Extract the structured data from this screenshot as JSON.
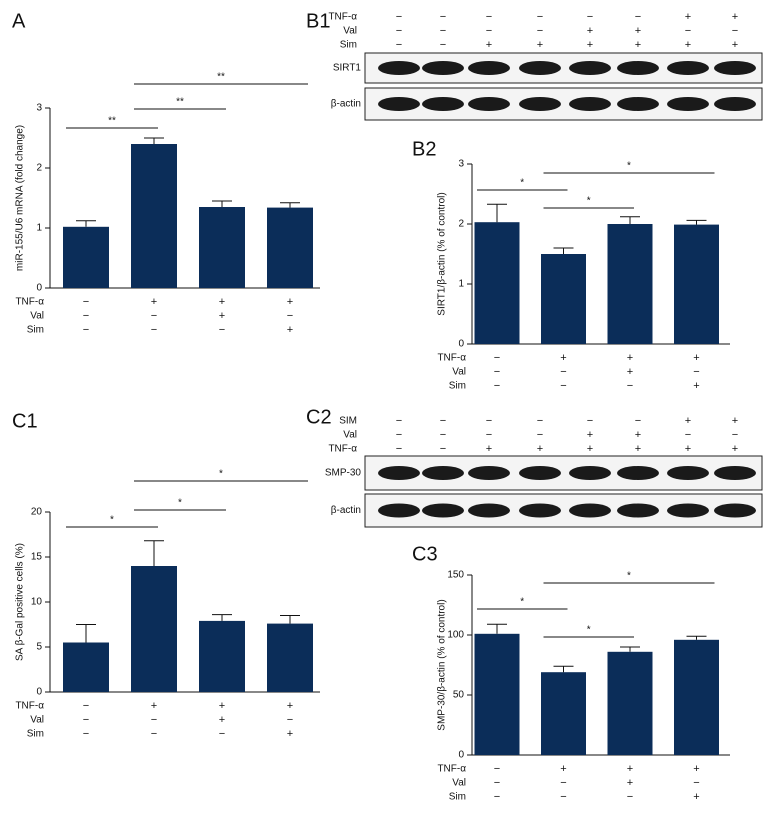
{
  "chart_data": [
    {
      "type": "bar",
      "panel": "A",
      "ylabel": "miR-155/U6 mRNA (fold change)",
      "values": [
        1.02,
        2.4,
        1.35,
        1.34
      ],
      "errors": [
        0.1,
        0.1,
        0.1,
        0.08
      ],
      "color": "#0b2d59",
      "ylim": [
        0,
        3
      ],
      "yticks": [
        0,
        1,
        2,
        3
      ],
      "conditions": [
        {
          "name": "TNF-α",
          "signs": [
            "−",
            "+",
            "+",
            "+"
          ]
        },
        {
          "name": "Val",
          "signs": [
            "−",
            "−",
            "+",
            "−"
          ]
        },
        {
          "name": "Sim",
          "signs": [
            "−",
            "−",
            "−",
            "+"
          ]
        }
      ],
      "significance": [
        {
          "groups": [
            0,
            1
          ],
          "label": "**"
        },
        {
          "groups": [
            1,
            2
          ],
          "label": "**"
        },
        {
          "groups": [
            1,
            3
          ],
          "label": "**"
        }
      ]
    },
    {
      "type": "bar",
      "panel": "B2",
      "ylabel": "SIRT1/β-actin (% of control)",
      "values": [
        2.03,
        1.5,
        2.0,
        1.99
      ],
      "errors": [
        0.3,
        0.1,
        0.12,
        0.07
      ],
      "color": "#0b2d59",
      "ylim": [
        0,
        3
      ],
      "yticks": [
        0,
        1,
        2,
        3
      ],
      "conditions": [
        {
          "name": "TNF-α",
          "signs": [
            "−",
            "+",
            "+",
            "+"
          ]
        },
        {
          "name": "Val",
          "signs": [
            "−",
            "−",
            "+",
            "−"
          ]
        },
        {
          "name": "Sim",
          "signs": [
            "−",
            "−",
            "−",
            "+"
          ]
        }
      ],
      "significance": [
        {
          "groups": [
            0,
            1
          ],
          "label": "*"
        },
        {
          "groups": [
            1,
            2
          ],
          "label": "*"
        },
        {
          "groups": [
            1,
            3
          ],
          "label": "*"
        }
      ]
    },
    {
      "type": "bar",
      "panel": "C1",
      "ylabel": "SA β-Gal positive cells (%)",
      "values": [
        5.5,
        14,
        7.9,
        7.6
      ],
      "errors": [
        2,
        2.8,
        0.7,
        0.9
      ],
      "color": "#0b2d59",
      "ylim": [
        0,
        20
      ],
      "yticks": [
        0,
        5,
        10,
        15,
        20
      ],
      "conditions": [
        {
          "name": "TNF-α",
          "signs": [
            "−",
            "+",
            "+",
            "+"
          ]
        },
        {
          "name": "Val",
          "signs": [
            "−",
            "−",
            "+",
            "−"
          ]
        },
        {
          "name": "Sim",
          "signs": [
            "−",
            "−",
            "−",
            "+"
          ]
        }
      ],
      "significance": [
        {
          "groups": [
            0,
            1
          ],
          "label": "*"
        },
        {
          "groups": [
            1,
            2
          ],
          "label": "*"
        },
        {
          "groups": [
            1,
            3
          ],
          "label": "*"
        }
      ]
    },
    {
      "type": "bar",
      "panel": "C3",
      "ylabel": "SMP-30/β-actin (% of control)",
      "values": [
        101,
        69,
        86,
        96
      ],
      "errors": [
        8,
        5,
        4,
        3
      ],
      "color": "#0b2d59",
      "ylim": [
        0,
        150
      ],
      "yticks": [
        0,
        50,
        100,
        150
      ],
      "conditions": [
        {
          "name": "TNF-α",
          "signs": [
            "−",
            "+",
            "+",
            "+"
          ]
        },
        {
          "name": "Val",
          "signs": [
            "−",
            "−",
            "+",
            "−"
          ]
        },
        {
          "name": "Sim",
          "signs": [
            "−",
            "−",
            "−",
            "+"
          ]
        }
      ],
      "significance": [
        {
          "groups": [
            0,
            1
          ],
          "label": "*"
        },
        {
          "groups": [
            1,
            2
          ],
          "label": "*"
        },
        {
          "groups": [
            1,
            3
          ],
          "label": "*"
        }
      ]
    }
  ],
  "blots": [
    {
      "panel": "B1",
      "conditions": [
        {
          "name": "TNF-α",
          "signs": [
            "−",
            "−",
            "−",
            "−",
            "−",
            "−",
            "+",
            "+"
          ]
        },
        {
          "name": "Val",
          "signs": [
            "−",
            "−",
            "−",
            "−",
            "+",
            "+",
            "−",
            "−"
          ]
        },
        {
          "name": "Sim",
          "signs": [
            "−",
            "−",
            "+",
            "+",
            "+",
            "+",
            "+",
            "+"
          ]
        }
      ],
      "bands": [
        "SIRT1",
        "β-actin"
      ]
    },
    {
      "panel": "C2",
      "conditions": [
        {
          "name": "SIM",
          "signs": [
            "−",
            "−",
            "−",
            "−",
            "−",
            "−",
            "+",
            "+"
          ]
        },
        {
          "name": "Val",
          "signs": [
            "−",
            "−",
            "−",
            "−",
            "+",
            "+",
            "−",
            "−"
          ]
        },
        {
          "name": "TNF-α",
          "signs": [
            "−",
            "−",
            "+",
            "+",
            "+",
            "+",
            "+",
            "+"
          ]
        }
      ],
      "bands": [
        "SMP-30",
        "β-actin"
      ]
    }
  ]
}
